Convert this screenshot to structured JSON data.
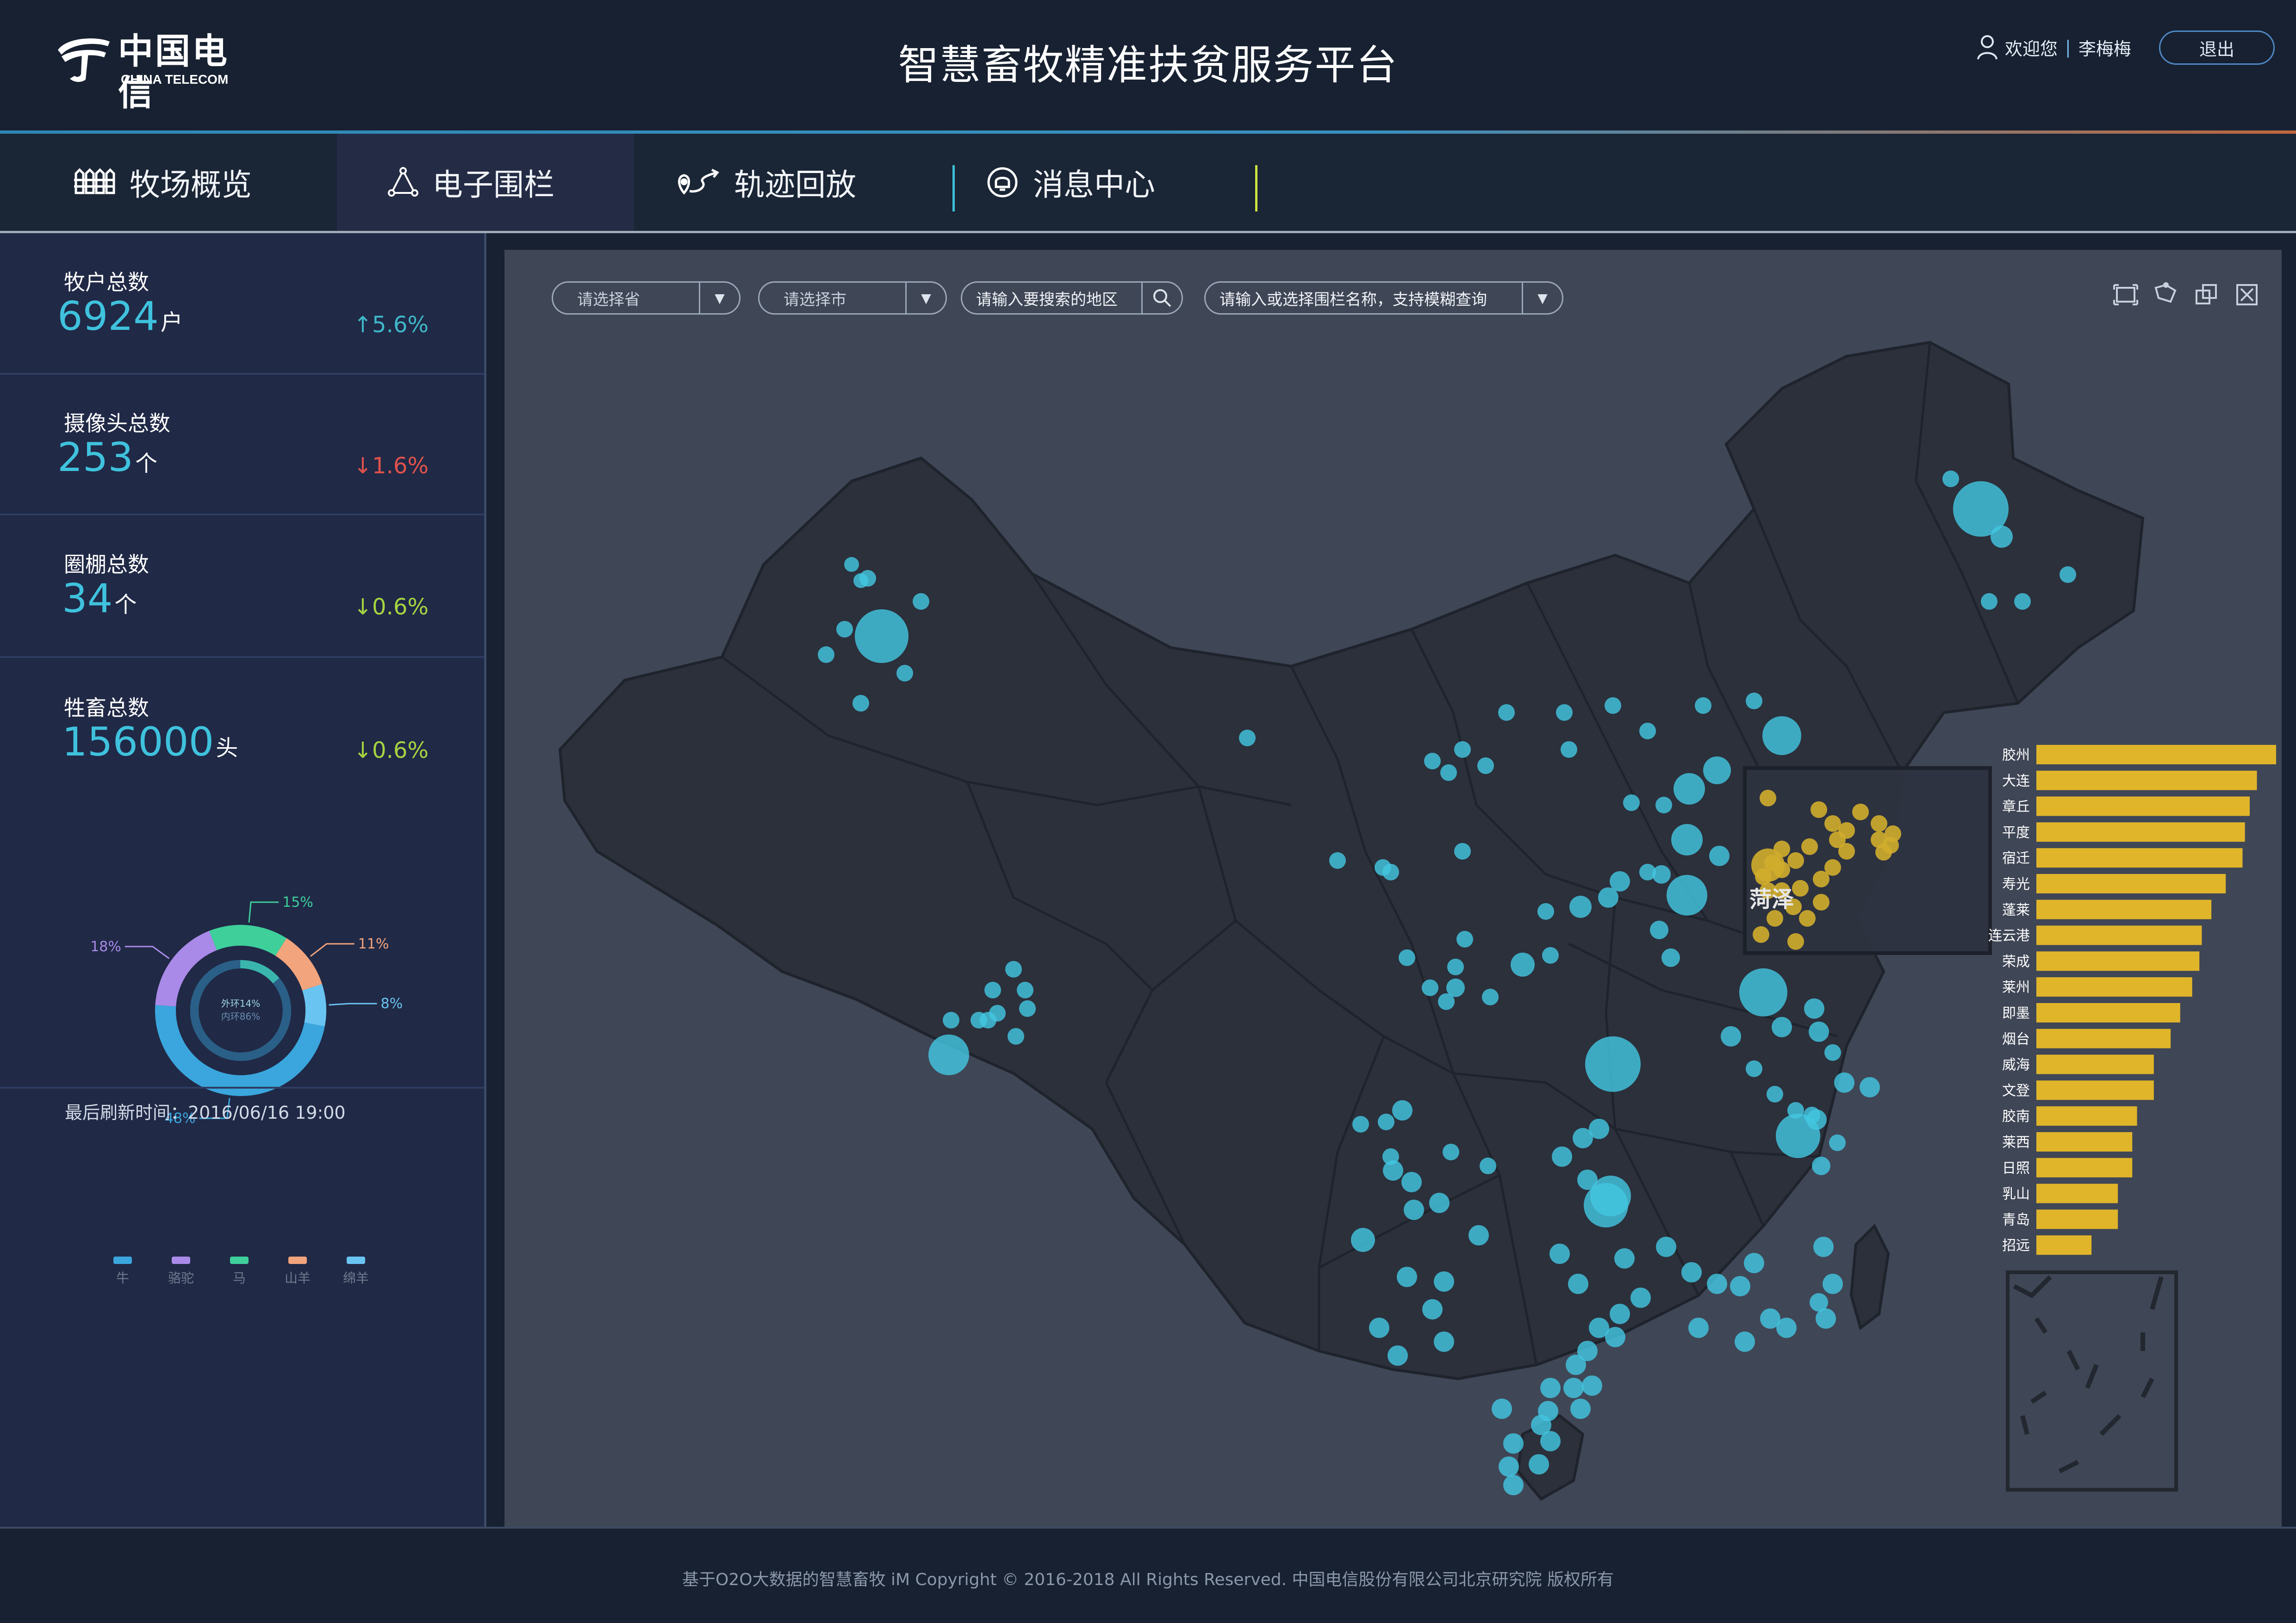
{
  "header": {
    "logo_cn": "中国电信",
    "logo_en": "CHINA TELECOM",
    "title": "智慧畜牧精准扶贫服务平台",
    "welcome": "欢迎您",
    "username": "李梅梅",
    "logout": "退出"
  },
  "nav": {
    "tabs": [
      {
        "label": "牧场概览",
        "icon": "ranch-icon"
      },
      {
        "label": "电子围栏",
        "icon": "fence-icon",
        "active": true
      },
      {
        "label": "轨迹回放",
        "icon": "track-icon"
      },
      {
        "label": "消息中心",
        "icon": "bell-icon"
      }
    ]
  },
  "sidebar": {
    "stats": [
      {
        "label": "牧户总数",
        "value": "6924",
        "unit": "户",
        "change": "↑5.6%",
        "color": "#3fb8c9"
      },
      {
        "label": "摄像头总数",
        "value": "253",
        "unit": "个",
        "change": "↓1.6%",
        "color": "#e0524c"
      },
      {
        "label": "圈棚总数",
        "value": "34",
        "unit": "个",
        "change": "↓0.6%",
        "color": "#a6d441"
      },
      {
        "label": "牲畜总数",
        "value": "156000",
        "unit": "头",
        "change": "↓0.6%",
        "color": "#a6d441"
      }
    ],
    "donut": {
      "inner_outer_text": "外环14%",
      "inner_inner_text": "内环86%",
      "slices": [
        {
          "name": "牛",
          "percent": "48%",
          "value": 48,
          "color": "#3aa6dd"
        },
        {
          "name": "骆驼",
          "percent": "18%",
          "value": 18,
          "color": "#a98ae8"
        },
        {
          "name": "马",
          "percent": "15%",
          "value": 15,
          "color": "#3ecf9b"
        },
        {
          "name": "山羊",
          "percent": "11%",
          "value": 11,
          "color": "#f2a47c"
        },
        {
          "name": "绵羊",
          "percent": "8%",
          "value": 8,
          "color": "#69c4f2"
        }
      ]
    },
    "refresh_text": "最后刷新时间：2016/06/16 19:00"
  },
  "map": {
    "province_placeholder": "请选择省",
    "city_placeholder": "请选择市",
    "search_placeholder": "请输入要搜索的地区",
    "fence_placeholder": "请输入或选择围栏名称，支持模糊查询",
    "tools": [
      "fullscreen-icon",
      "lasso-icon",
      "layers-icon",
      "close-box-icon"
    ],
    "highlight_label": "菏泽",
    "marker_color": "#43c6e0",
    "highlight_color": "#d2ad2c",
    "ranking": [
      {
        "name": "胶州",
        "value": 100
      },
      {
        "name": "大连",
        "value": 92
      },
      {
        "name": "章丘",
        "value": 89
      },
      {
        "name": "平度",
        "value": 87
      },
      {
        "name": "宿迁",
        "value": 86
      },
      {
        "name": "寿光",
        "value": 79
      },
      {
        "name": "蓬莱",
        "value": 73
      },
      {
        "name": "连云港",
        "value": 69
      },
      {
        "name": "荣成",
        "value": 68
      },
      {
        "name": "莱州",
        "value": 65
      },
      {
        "name": "即墨",
        "value": 60
      },
      {
        "name": "烟台",
        "value": 56
      },
      {
        "name": "威海",
        "value": 49
      },
      {
        "name": "文登",
        "value": 49
      },
      {
        "name": "胶南",
        "value": 42
      },
      {
        "name": "莱西",
        "value": 40
      },
      {
        "name": "日照",
        "value": 40
      },
      {
        "name": "乳山",
        "value": 34
      },
      {
        "name": "青岛",
        "value": 34
      },
      {
        "name": "招远",
        "value": 23
      }
    ]
  },
  "footer": {
    "copyright": "基于O2O大数据的智慧畜牧 iM Copyright © 2016-2018 All Rights Reserved. 中国电信股份有限公司北京研究院 版权所有"
  }
}
